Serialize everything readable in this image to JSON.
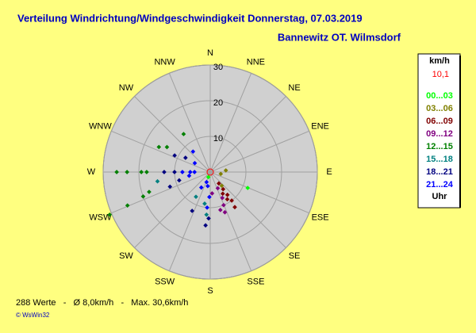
{
  "chart_data": {
    "type": "polar-scatter",
    "title": "Verteilung Windrichtung/Windgeschwindigkeit  Donnerstag, 07.03.2019",
    "subtitle": "Bannewitz OT. Wilmsdorf",
    "directions": [
      "N",
      "NNE",
      "NE",
      "ENE",
      "E",
      "ESE",
      "SE",
      "SSE",
      "S",
      "SSW",
      "SW",
      "WSW",
      "W",
      "WNW",
      "NW",
      "NNW"
    ],
    "rlim": [
      0,
      30
    ],
    "rticks": [
      10,
      20,
      30
    ],
    "legend_title": "km/h",
    "legend_value": "10,1",
    "legend_unit": "Uhr",
    "series": [
      {
        "name": "00...03",
        "color": "#00ff00",
        "x": [
          113,
          200
        ],
        "values": [
          11.4,
          1.5
        ]
      },
      {
        "name": "03...06",
        "color": "#808000",
        "x": [
          84,
          100,
          140
        ],
        "values": [
          4.4,
          3,
          5
        ]
      },
      {
        "name": "06...09",
        "color": "#800000",
        "x": [
          143,
          143,
          143,
          143,
          145,
          150,
          148
        ],
        "values": [
          4,
          6,
          8,
          10,
          12,
          7,
          9
        ]
      },
      {
        "name": "09...12",
        "color": "#800080",
        "x": [
          155,
          158,
          160,
          165,
          175,
          155
        ],
        "values": [
          8,
          10,
          12,
          11,
          6,
          5
        ]
      },
      {
        "name": "12...15",
        "color": "#008000",
        "x": [
          270,
          270,
          270,
          270,
          247,
          248,
          250,
          252,
          296,
          300,
          325
        ],
        "values": [
          26.2,
          23.3,
          19.3,
          17.8,
          30.6,
          25,
          20,
          18,
          16,
          14,
          13
        ]
      },
      {
        "name": "15...18",
        "color": "#008080",
        "x": [
          185,
          190,
          210,
          260
        ],
        "values": [
          12,
          9,
          8,
          15
        ]
      },
      {
        "name": "18...21",
        "color": "#000080",
        "x": [
          270,
          270,
          250,
          255,
          295,
          300,
          185,
          182,
          205
        ],
        "values": [
          12.9,
          10,
          12,
          9,
          11,
          8,
          15,
          13,
          12
        ]
      },
      {
        "name": "21...24",
        "color": "#0000ff",
        "x": [
          270,
          270,
          270,
          260,
          300,
          320,
          185,
          182,
          190,
          210,
          200
        ],
        "values": [
          7.8,
          5.6,
          4.4,
          6,
          5,
          7.5,
          10,
          7,
          4,
          5,
          3
        ]
      }
    ],
    "value_label": "10,1",
    "footer": "288 Werte   -   Ø 8,0km/h   -   Max. 30,6km/h",
    "copyright": "© WsWin32"
  }
}
